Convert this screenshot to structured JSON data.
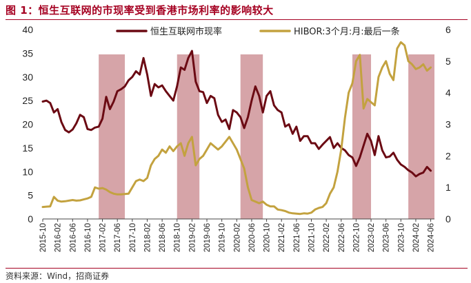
{
  "title": "图 1：恒生互联网的市现率受到香港市场利率的影响较大",
  "source": "资料来源：Wind，招商证券",
  "chart_data": {
    "type": "line",
    "title": "图 1：恒生互联网的市现率受到香港市场利率的影响较大",
    "xlabel": "",
    "ylabel": "",
    "ylim_left": [
      0,
      40
    ],
    "ylim_right": [
      0,
      6
    ],
    "yticks_left": [
      "0",
      "5",
      "10",
      "15",
      "20",
      "25",
      "30",
      "35",
      "40"
    ],
    "yticks_right": [
      "0",
      "1",
      "2",
      "3",
      "4",
      "5",
      "6"
    ],
    "xlim": [
      "2015-10",
      "2024-07"
    ],
    "x_tick_labels": [
      "2015-10",
      "2016-02",
      "2016-06",
      "2016-10",
      "2017-02",
      "2017-06",
      "2017-10",
      "2018-02",
      "2018-06",
      "2018-10",
      "2019-02",
      "2019-06",
      "2019-10",
      "2020-02",
      "2020-06",
      "2020-10",
      "2021-02",
      "2021-06",
      "2021-10",
      "2022-02",
      "2022-06",
      "2022-10",
      "2023-02",
      "2023-06",
      "2023-10",
      "2024-02",
      "2024-06"
    ],
    "grid": false,
    "legend": "top",
    "colors": {
      "pcf": "#6b0a13",
      "hibor": "#c3a23f",
      "shade": "#b45a60"
    },
    "shaded_periods": [
      {
        "start": "2017-01",
        "end": "2017-08"
      },
      {
        "start": "2018-10",
        "end": "2019-04"
      },
      {
        "start": "2020-03",
        "end": "2020-09"
      },
      {
        "start": "2022-09",
        "end": "2023-02"
      },
      {
        "start": "2023-12",
        "end": "2024-07"
      }
    ],
    "series": [
      {
        "name": "恒生互联网市现率",
        "axis": "left",
        "x": [
          "2015-10",
          "2015-11",
          "2015-12",
          "2016-01",
          "2016-02",
          "2016-03",
          "2016-04",
          "2016-05",
          "2016-06",
          "2016-07",
          "2016-08",
          "2016-09",
          "2016-10",
          "2016-11",
          "2016-12",
          "2017-01",
          "2017-02",
          "2017-03",
          "2017-04",
          "2017-05",
          "2017-06",
          "2017-07",
          "2017-08",
          "2017-09",
          "2017-10",
          "2017-11",
          "2017-12",
          "2018-01",
          "2018-02",
          "2018-03",
          "2018-04",
          "2018-05",
          "2018-06",
          "2018-07",
          "2018-08",
          "2018-09",
          "2018-10",
          "2018-11",
          "2018-12",
          "2019-01",
          "2019-02",
          "2019-03",
          "2019-04",
          "2019-05",
          "2019-06",
          "2019-07",
          "2019-08",
          "2019-09",
          "2019-10",
          "2019-11",
          "2019-12",
          "2020-01",
          "2020-02",
          "2020-03",
          "2020-04",
          "2020-05",
          "2020-06",
          "2020-07",
          "2020-08",
          "2020-09",
          "2020-10",
          "2020-11",
          "2020-12",
          "2021-01",
          "2021-02",
          "2021-03",
          "2021-04",
          "2021-05",
          "2021-06",
          "2021-07",
          "2021-08",
          "2021-09",
          "2021-10",
          "2021-11",
          "2021-12",
          "2022-01",
          "2022-02",
          "2022-03",
          "2022-04",
          "2022-05",
          "2022-06",
          "2022-07",
          "2022-08",
          "2022-09",
          "2022-10",
          "2022-11",
          "2022-12",
          "2023-01",
          "2023-02",
          "2023-03",
          "2023-04",
          "2023-05",
          "2023-06",
          "2023-07",
          "2023-08",
          "2023-09",
          "2023-10",
          "2023-11",
          "2023-12",
          "2024-01",
          "2024-02",
          "2024-03",
          "2024-04",
          "2024-05",
          "2024-06"
        ],
        "values": [
          24.8,
          25.0,
          24.5,
          22.5,
          23.2,
          20.5,
          18.8,
          18.3,
          18.9,
          20.2,
          22.0,
          21.5,
          19.0,
          18.8,
          19.3,
          19.5,
          21.2,
          25.8,
          23.2,
          24.8,
          27.0,
          27.4,
          28.0,
          29.3,
          30.0,
          31.2,
          30.5,
          34.0,
          30.5,
          26.0,
          28.5,
          27.8,
          28.2,
          27.0,
          26.0,
          25.0,
          28.0,
          32.0,
          31.5,
          34.0,
          35.5,
          29.0,
          27.0,
          26.8,
          24.5,
          26.0,
          25.5,
          22.0,
          20.5,
          21.0,
          19.0,
          23.0,
          22.5,
          21.5,
          19.2,
          21.5,
          25.0,
          28.0,
          26.0,
          22.5,
          26.0,
          27.0,
          24.0,
          23.0,
          22.5,
          19.5,
          20.0,
          18.0,
          19.5,
          16.5,
          17.5,
          17.5,
          16.0,
          16.0,
          14.8,
          15.7,
          16.5,
          17.3,
          15.0,
          16.0,
          15.0,
          14.5,
          13.5,
          13.0,
          11.2,
          13.0,
          15.5,
          18.0,
          16.5,
          13.5,
          17.5,
          14.5,
          13.0,
          13.2,
          14.0,
          12.5,
          11.5,
          11.0,
          10.3,
          9.8,
          9.0,
          9.5,
          9.8,
          11.0,
          10.2
        ]
      },
      {
        "name": "HIBOR:3个月:月:最后一条",
        "axis": "right",
        "x": [
          "2015-10",
          "2015-11",
          "2015-12",
          "2016-01",
          "2016-02",
          "2016-03",
          "2016-04",
          "2016-05",
          "2016-06",
          "2016-07",
          "2016-08",
          "2016-09",
          "2016-10",
          "2016-11",
          "2016-12",
          "2017-01",
          "2017-02",
          "2017-03",
          "2017-04",
          "2017-05",
          "2017-06",
          "2017-07",
          "2017-08",
          "2017-09",
          "2017-10",
          "2017-11",
          "2017-12",
          "2018-01",
          "2018-02",
          "2018-03",
          "2018-04",
          "2018-05",
          "2018-06",
          "2018-07",
          "2018-08",
          "2018-09",
          "2018-10",
          "2018-11",
          "2018-12",
          "2019-01",
          "2019-02",
          "2019-03",
          "2019-04",
          "2019-05",
          "2019-06",
          "2019-07",
          "2019-08",
          "2019-09",
          "2019-10",
          "2019-11",
          "2019-12",
          "2020-01",
          "2020-02",
          "2020-03",
          "2020-04",
          "2020-05",
          "2020-06",
          "2020-07",
          "2020-08",
          "2020-09",
          "2020-10",
          "2020-11",
          "2020-12",
          "2021-01",
          "2021-02",
          "2021-03",
          "2021-04",
          "2021-05",
          "2021-06",
          "2021-07",
          "2021-08",
          "2021-09",
          "2021-10",
          "2021-11",
          "2021-12",
          "2022-01",
          "2022-02",
          "2022-03",
          "2022-04",
          "2022-05",
          "2022-06",
          "2022-07",
          "2022-08",
          "2022-09",
          "2022-10",
          "2022-11",
          "2022-12",
          "2023-01",
          "2023-02",
          "2023-03",
          "2023-04",
          "2023-05",
          "2023-06",
          "2023-07",
          "2023-08",
          "2023-09",
          "2023-10",
          "2023-11",
          "2023-12",
          "2024-01",
          "2024-02",
          "2024-03",
          "2024-04",
          "2024-05",
          "2024-06"
        ],
        "values": [
          0.38,
          0.39,
          0.4,
          0.7,
          0.58,
          0.55,
          0.56,
          0.58,
          0.6,
          0.58,
          0.59,
          0.62,
          0.65,
          0.7,
          1.0,
          0.96,
          0.98,
          0.93,
          0.85,
          0.8,
          0.78,
          0.78,
          0.79,
          0.8,
          1.0,
          1.2,
          1.25,
          1.2,
          1.3,
          1.7,
          1.9,
          2.0,
          2.2,
          2.1,
          2.3,
          2.15,
          2.3,
          2.4,
          2.0,
          2.4,
          2.6,
          1.7,
          1.9,
          2.0,
          2.2,
          2.4,
          2.3,
          2.2,
          2.3,
          2.45,
          2.6,
          2.4,
          2.2,
          1.9,
          1.6,
          1.0,
          0.6,
          0.55,
          0.5,
          0.55,
          0.45,
          0.4,
          0.4,
          0.3,
          0.28,
          0.25,
          0.2,
          0.18,
          0.17,
          0.16,
          0.18,
          0.17,
          0.2,
          0.3,
          0.35,
          0.38,
          0.5,
          0.8,
          1.0,
          1.5,
          2.2,
          3.2,
          4.0,
          4.3,
          5.0,
          5.2,
          3.5,
          3.8,
          3.7,
          3.6,
          4.5,
          4.8,
          5.0,
          4.6,
          4.4,
          5.4,
          5.6,
          5.5,
          5.0,
          4.9,
          4.75,
          4.8,
          4.9,
          4.7,
          4.8
        ]
      }
    ]
  }
}
